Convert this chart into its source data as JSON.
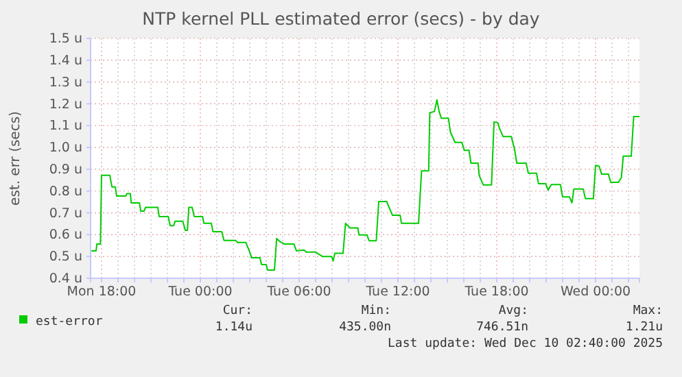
{
  "chart_data": {
    "type": "line",
    "title": "NTP kernel PLL estimated error (secs) - by day",
    "ylabel": "est. err (secs)",
    "xlim": [
      "2025-12-08T17:20",
      "2025-12-10T02:40"
    ],
    "xticks": [
      {
        "value": "2025-12-08T18:00",
        "label": "Mon 18:00"
      },
      {
        "value": "2025-12-08T19:00",
        "label": null
      },
      {
        "value": "2025-12-08T20:00",
        "label": null
      },
      {
        "value": "2025-12-08T21:00",
        "label": null
      },
      {
        "value": "2025-12-08T22:00",
        "label": null
      },
      {
        "value": "2025-12-08T23:00",
        "label": null
      },
      {
        "value": "2025-12-09T00:00",
        "label": "Tue 00:00"
      },
      {
        "value": "2025-12-09T01:00",
        "label": null
      },
      {
        "value": "2025-12-09T02:00",
        "label": null
      },
      {
        "value": "2025-12-09T03:00",
        "label": null
      },
      {
        "value": "2025-12-09T04:00",
        "label": null
      },
      {
        "value": "2025-12-09T05:00",
        "label": null
      },
      {
        "value": "2025-12-09T06:00",
        "label": "Tue 06:00"
      },
      {
        "value": "2025-12-09T07:00",
        "label": null
      },
      {
        "value": "2025-12-09T08:00",
        "label": null
      },
      {
        "value": "2025-12-09T09:00",
        "label": null
      },
      {
        "value": "2025-12-09T10:00",
        "label": null
      },
      {
        "value": "2025-12-09T11:00",
        "label": null
      },
      {
        "value": "2025-12-09T12:00",
        "label": "Tue 12:00"
      },
      {
        "value": "2025-12-09T13:00",
        "label": null
      },
      {
        "value": "2025-12-09T14:00",
        "label": null
      },
      {
        "value": "2025-12-09T15:00",
        "label": null
      },
      {
        "value": "2025-12-09T16:00",
        "label": null
      },
      {
        "value": "2025-12-09T17:00",
        "label": null
      },
      {
        "value": "2025-12-09T18:00",
        "label": "Tue 18:00"
      },
      {
        "value": "2025-12-09T19:00",
        "label": null
      },
      {
        "value": "2025-12-09T20:00",
        "label": null
      },
      {
        "value": "2025-12-09T21:00",
        "label": null
      },
      {
        "value": "2025-12-09T22:00",
        "label": null
      },
      {
        "value": "2025-12-09T23:00",
        "label": null
      },
      {
        "value": "2025-12-10T00:00",
        "label": "Wed 00:00"
      },
      {
        "value": "2025-12-10T01:00",
        "label": null
      },
      {
        "value": "2025-12-10T02:00",
        "label": null
      }
    ],
    "ylim": [
      0.4,
      1.5
    ],
    "yticks": [
      {
        "value": 0.4,
        "label": "0.4 u"
      },
      {
        "value": 0.5,
        "label": "0.5 u"
      },
      {
        "value": 0.6,
        "label": "0.6 u"
      },
      {
        "value": 0.7,
        "label": "0.7 u"
      },
      {
        "value": 0.8,
        "label": "0.8 u"
      },
      {
        "value": 0.9,
        "label": "0.9 u"
      },
      {
        "value": 1.0,
        "label": "1.0 u"
      },
      {
        "value": 1.1,
        "label": "1.1 u"
      },
      {
        "value": 1.2,
        "label": "1.2 u"
      },
      {
        "value": 1.3,
        "label": "1.3 u"
      },
      {
        "value": 1.4,
        "label": "1.4 u"
      },
      {
        "value": 1.5,
        "label": "1.5 u"
      }
    ],
    "grid": true,
    "legend": "bottom",
    "series": [
      {
        "name": "est-error",
        "color": "#00cc00",
        "x": [
          "2025-12-08T17:23",
          "2025-12-08T17:40",
          "2025-12-08T17:43",
          "2025-12-08T17:56",
          "2025-12-08T18:00",
          "2025-12-08T18:30",
          "2025-12-08T18:38",
          "2025-12-08T18:50",
          "2025-12-08T18:55",
          "2025-12-08T19:28",
          "2025-12-08T19:32",
          "2025-12-08T19:45",
          "2025-12-08T19:48",
          "2025-12-08T20:18",
          "2025-12-08T20:23",
          "2025-12-08T20:35",
          "2025-12-08T20:40",
          "2025-12-08T21:25",
          "2025-12-08T21:30",
          "2025-12-08T22:03",
          "2025-12-08T22:10",
          "2025-12-08T22:23",
          "2025-12-08T22:28",
          "2025-12-08T22:56",
          "2025-12-08T23:05",
          "2025-12-08T23:13",
          "2025-12-08T23:18",
          "2025-12-08T23:30",
          "2025-12-08T23:38",
          "2025-12-09T00:08",
          "2025-12-09T00:13",
          "2025-12-09T00:40",
          "2025-12-09T00:46",
          "2025-12-09T01:18",
          "2025-12-09T01:26",
          "2025-12-09T02:08",
          "2025-12-09T02:16",
          "2025-12-09T02:46",
          "2025-12-09T02:58",
          "2025-12-09T03:07",
          "2025-12-09T03:37",
          "2025-12-09T03:43",
          "2025-12-09T04:00",
          "2025-12-09T04:05",
          "2025-12-09T04:30",
          "2025-12-09T04:38",
          "2025-12-09T04:50",
          "2025-12-09T05:07",
          "2025-12-09T05:41",
          "2025-12-09T05:50",
          "2025-12-09T06:18",
          "2025-12-09T06:26",
          "2025-12-09T07:00",
          "2025-12-09T07:25",
          "2025-12-09T07:58",
          "2025-12-09T08:04",
          "2025-12-09T08:10",
          "2025-12-09T08:40",
          "2025-12-09T08:49",
          "2025-12-09T09:05",
          "2025-12-09T09:34",
          "2025-12-09T09:38",
          "2025-12-09T10:07",
          "2025-12-09T10:15",
          "2025-12-09T10:41",
          "2025-12-09T10:50",
          "2025-12-09T11:19",
          "2025-12-09T11:35",
          "2025-12-09T11:40",
          "2025-12-09T12:08",
          "2025-12-09T12:13",
          "2025-12-09T13:15",
          "2025-12-09T13:26",
          "2025-12-09T13:52",
          "2025-12-09T13:56",
          "2025-12-09T14:13",
          "2025-12-09T14:22",
          "2025-12-09T14:30",
          "2025-12-09T14:38",
          "2025-12-09T15:04",
          "2025-12-09T15:11",
          "2025-12-09T15:28",
          "2025-12-09T15:53",
          "2025-12-09T16:02",
          "2025-12-09T16:19",
          "2025-12-09T16:26",
          "2025-12-09T16:52",
          "2025-12-09T16:56",
          "2025-12-09T17:11",
          "2025-12-09T17:41",
          "2025-12-09T17:50",
          "2025-12-09T18:04",
          "2025-12-09T18:10",
          "2025-12-09T18:23",
          "2025-12-09T18:53",
          "2025-12-09T19:05",
          "2025-12-09T19:13",
          "2025-12-09T19:47",
          "2025-12-09T19:55",
          "2025-12-09T20:25",
          "2025-12-09T20:32",
          "2025-12-09T20:58",
          "2025-12-09T21:07",
          "2025-12-09T21:19",
          "2025-12-09T21:52",
          "2025-12-09T22:00",
          "2025-12-09T22:25",
          "2025-12-09T22:34",
          "2025-12-09T22:41",
          "2025-12-09T23:15",
          "2025-12-09T23:23",
          "2025-12-09T23:52",
          "2025-12-10T00:00",
          "2025-12-10T00:13",
          "2025-12-10T00:22",
          "2025-12-10T00:47",
          "2025-12-10T00:55",
          "2025-12-10T01:23",
          "2025-12-10T01:34",
          "2025-12-10T01:41",
          "2025-12-10T02:10",
          "2025-12-10T02:19",
          "2025-12-10T02:40"
        ],
        "values": [
          0.526,
          0.526,
          0.557,
          0.557,
          0.872,
          0.872,
          0.819,
          0.819,
          0.777,
          0.777,
          0.788,
          0.788,
          0.746,
          0.746,
          0.708,
          0.708,
          0.725,
          0.725,
          0.683,
          0.683,
          0.641,
          0.641,
          0.662,
          0.662,
          0.62,
          0.62,
          0.725,
          0.725,
          0.683,
          0.683,
          0.652,
          0.652,
          0.614,
          0.614,
          0.574,
          0.574,
          0.564,
          0.564,
          0.526,
          0.494,
          0.494,
          0.463,
          0.463,
          0.438,
          0.438,
          0.582,
          0.568,
          0.557,
          0.557,
          0.526,
          0.53,
          0.52,
          0.52,
          0.5,
          0.5,
          0.48,
          0.515,
          0.515,
          0.652,
          0.631,
          0.631,
          0.599,
          0.599,
          0.572,
          0.572,
          0.752,
          0.752,
          0.704,
          0.689,
          0.689,
          0.652,
          0.652,
          0.893,
          0.893,
          1.159,
          1.165,
          1.218,
          1.165,
          1.134,
          1.134,
          1.071,
          1.023,
          1.023,
          0.987,
          0.987,
          0.928,
          0.928,
          0.872,
          0.828,
          0.828,
          1.117,
          1.113,
          1.088,
          1.05,
          1.05,
          0.991,
          0.928,
          0.928,
          0.882,
          0.882,
          0.834,
          0.834,
          0.805,
          0.83,
          0.83,
          0.773,
          0.773,
          0.746,
          0.809,
          0.809,
          0.765,
          0.765,
          0.918,
          0.914,
          0.878,
          0.878,
          0.84,
          0.84,
          0.861,
          0.96,
          0.96,
          1.142,
          1.142
        ]
      }
    ],
    "annotations": [
      "Cur:",
      "1.14u",
      "Min:",
      "435.00n",
      "Avg:",
      "746.51n",
      "Max:",
      "1.21u",
      "Last update: Wed Dec 10 02:40:00 2025"
    ]
  }
}
